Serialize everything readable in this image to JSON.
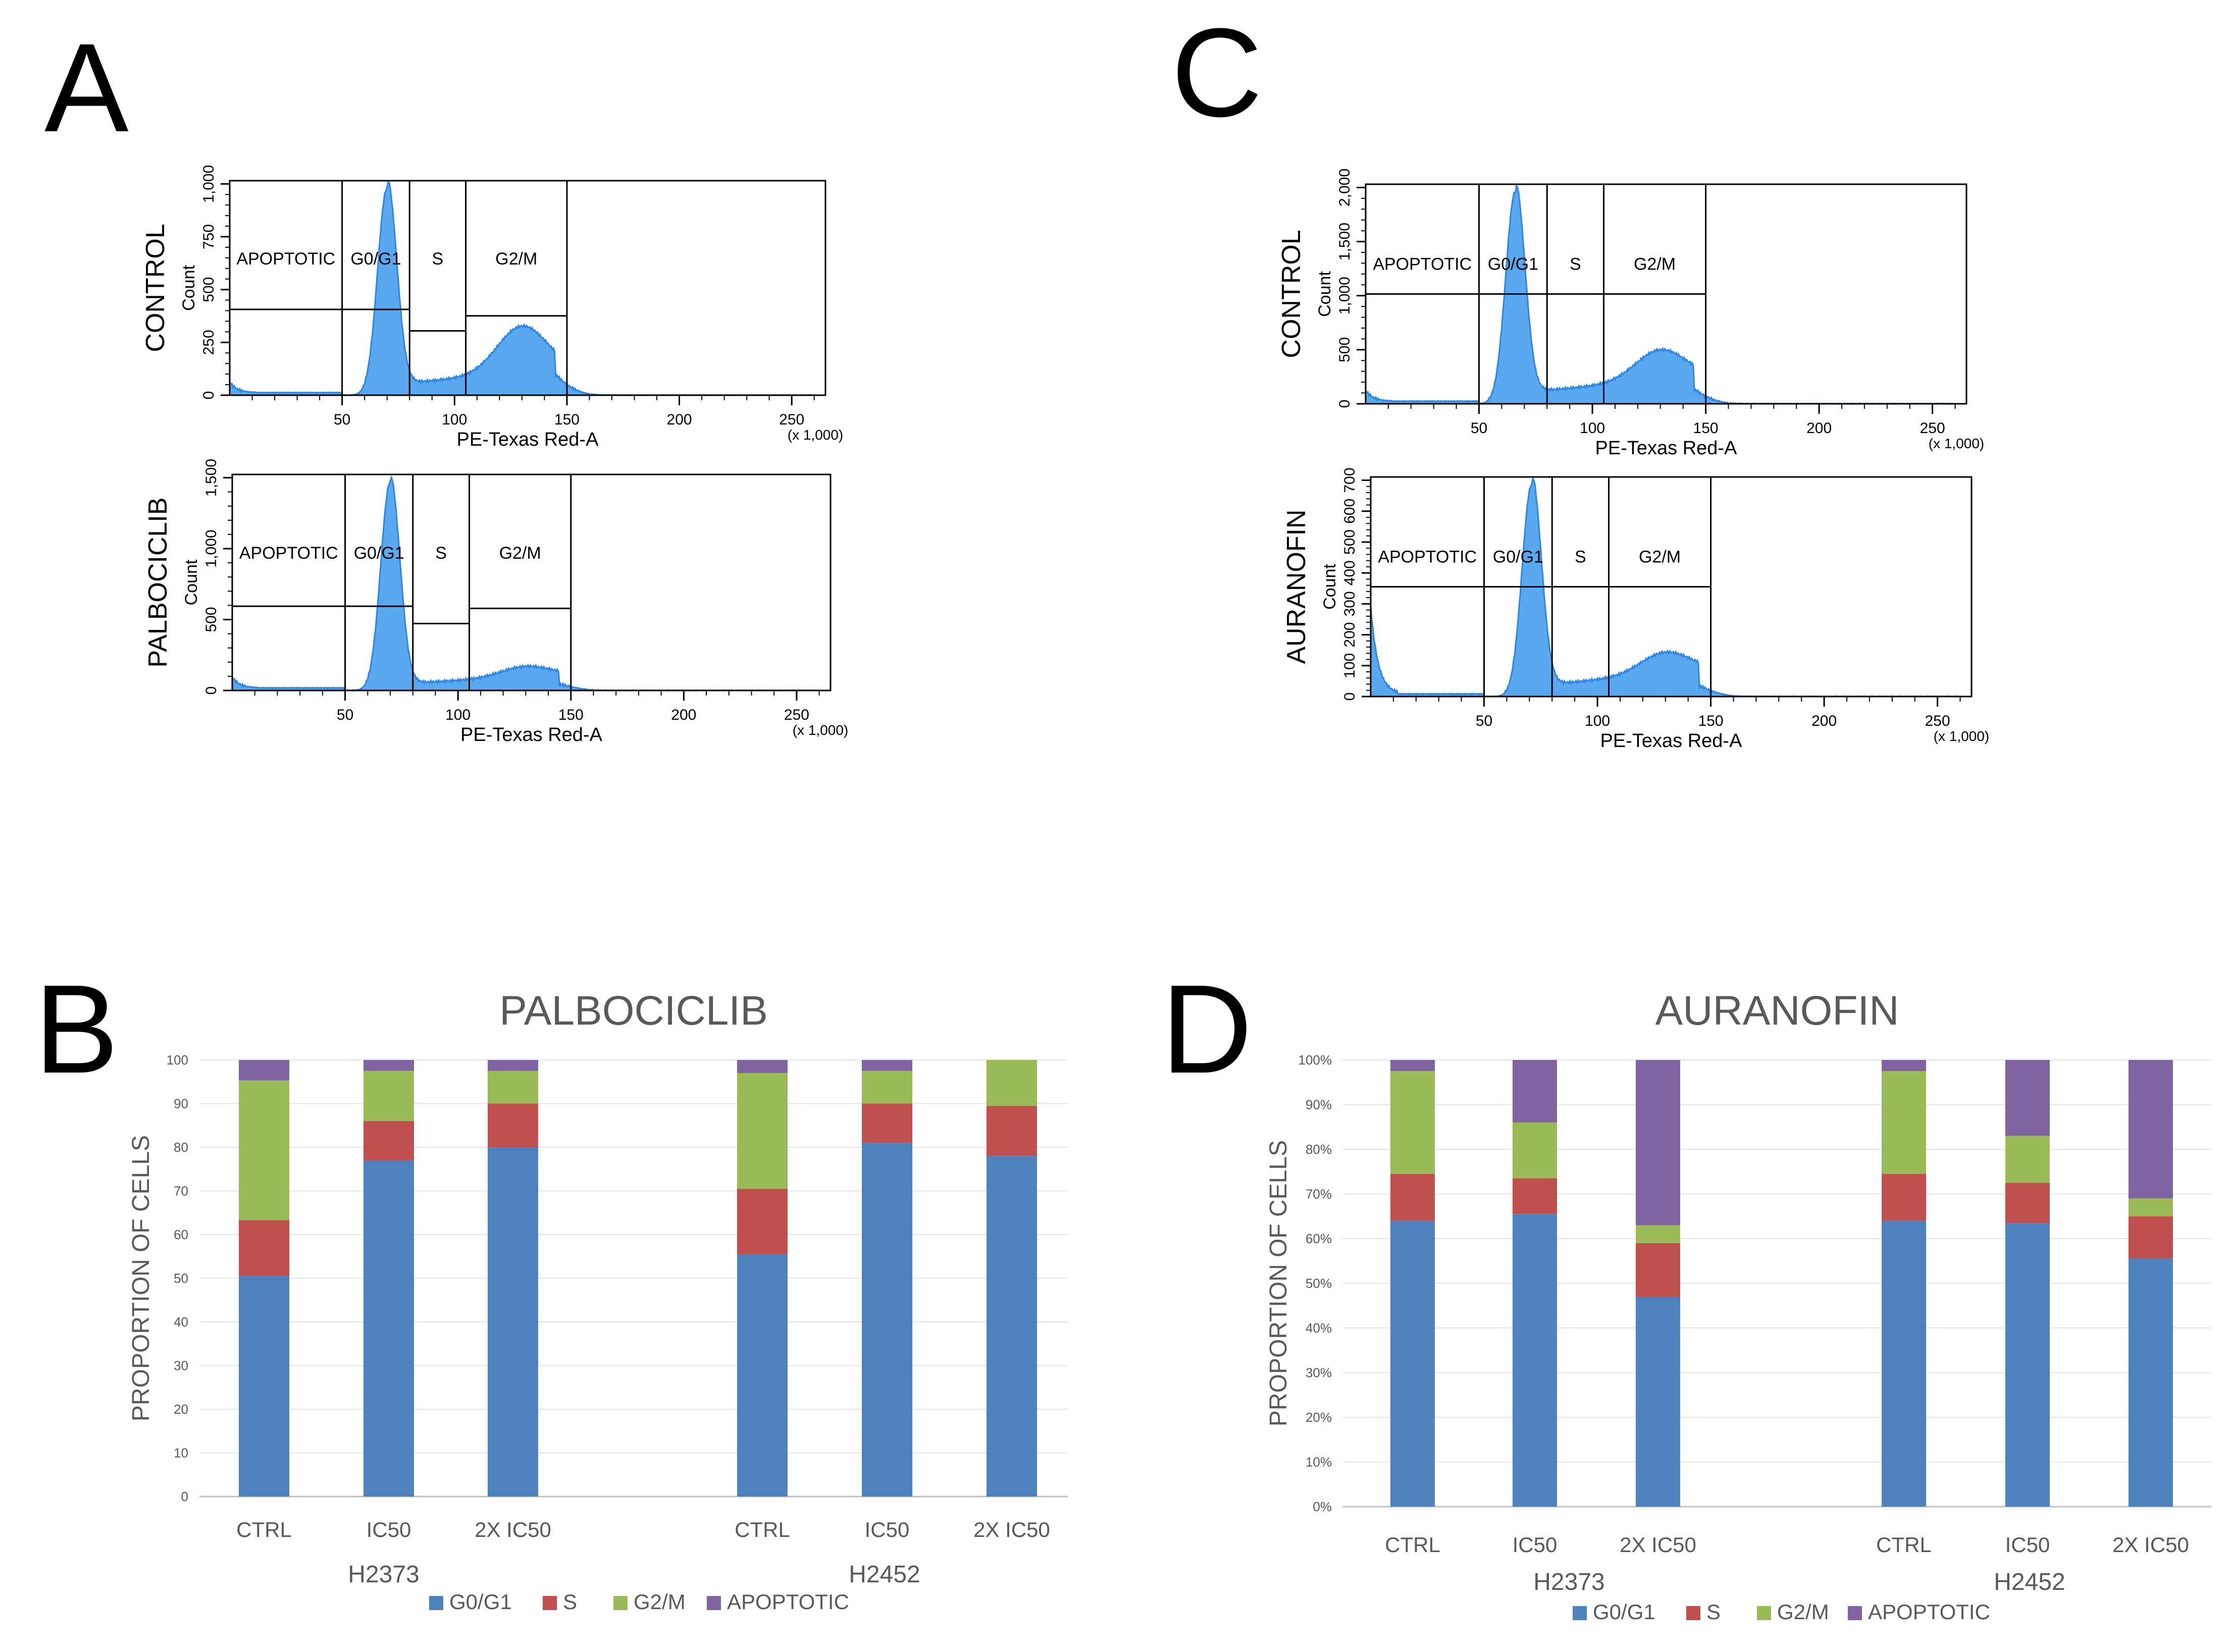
{
  "panels": {
    "A": "A",
    "B": "B",
    "C": "C",
    "D": "D"
  },
  "colors": {
    "g0g1": "#4F81BD",
    "s": "#C0504D",
    "g2m": "#9BBB59",
    "apoptotic": "#8064A2",
    "histogram_fill": "#5AA8F0",
    "histogram_stroke": "#2E86DE"
  },
  "histograms": [
    {
      "id": "A-control",
      "condition_label": "CONTROL",
      "ylabel": "Count",
      "y_ticks": [
        "0",
        "250",
        "500",
        "750",
        "1,000"
      ],
      "ylim": [
        0,
        1000
      ],
      "xlabel": "PE-Texas Red-A",
      "x_ticks": [
        "50",
        "100",
        "150",
        "200",
        "250"
      ],
      "x_multiplier": "(x 1,000)",
      "gates": [
        {
          "label": "APOPTOTIC",
          "x_start": 0,
          "x_end": 50
        },
        {
          "label": "G0/G1",
          "x_start": 50,
          "x_end": 80
        },
        {
          "label": "S",
          "x_start": 80,
          "x_end": 105
        },
        {
          "label": "G2/M",
          "x_start": 105,
          "x_end": 150
        }
      ]
    },
    {
      "id": "A-palbociclib",
      "condition_label": "PALBOCICLIB",
      "ylabel": "Count",
      "y_ticks": [
        "0",
        "500",
        "1,000",
        "1,500"
      ],
      "ylim": [
        0,
        1500
      ],
      "xlabel": "PE-Texas Red-A",
      "x_ticks": [
        "50",
        "100",
        "150",
        "200",
        "250"
      ],
      "x_multiplier": "(x 1,000)",
      "gates": [
        {
          "label": "APOPTOTIC",
          "x_start": 0,
          "x_end": 50
        },
        {
          "label": "G0/G1",
          "x_start": 50,
          "x_end": 80
        },
        {
          "label": "S",
          "x_start": 80,
          "x_end": 105
        },
        {
          "label": "G2/M",
          "x_start": 105,
          "x_end": 150
        }
      ]
    },
    {
      "id": "C-control",
      "condition_label": "CONTROL",
      "ylabel": "Count",
      "y_ticks": [
        "0",
        "500",
        "1,000",
        "1,500",
        "2,000"
      ],
      "ylim": [
        0,
        2000
      ],
      "xlabel": "PE-Texas Red-A",
      "x_ticks": [
        "50",
        "100",
        "150",
        "200",
        "250"
      ],
      "x_multiplier": "(x 1,000)",
      "gates": [
        {
          "label": "APOPTOTIC",
          "x_start": 0,
          "x_end": 50
        },
        {
          "label": "G0/G1",
          "x_start": 50,
          "x_end": 80
        },
        {
          "label": "S",
          "x_start": 80,
          "x_end": 105
        },
        {
          "label": "G2/M",
          "x_start": 105,
          "x_end": 150
        }
      ]
    },
    {
      "id": "C-auranofin",
      "condition_label": "AURANOFIN",
      "ylabel": "Count",
      "y_ticks": [
        "0",
        "100",
        "200",
        "300",
        "400",
        "500",
        "600",
        "700"
      ],
      "ylim": [
        0,
        700
      ],
      "xlabel": "PE-Texas Red-A",
      "x_ticks": [
        "50",
        "100",
        "150",
        "200",
        "250"
      ],
      "x_multiplier": "(x 1,000)",
      "gates": [
        {
          "label": "APOPTOTIC",
          "x_start": 0,
          "x_end": 50
        },
        {
          "label": "G0/G1",
          "x_start": 50,
          "x_end": 80
        },
        {
          "label": "S",
          "x_start": 80,
          "x_end": 105
        },
        {
          "label": "G2/M",
          "x_start": 105,
          "x_end": 150
        }
      ]
    }
  ],
  "chart_data": [
    {
      "type": "bar",
      "stacked": true,
      "panel": "B",
      "title": "PALBOCICLIB",
      "ylabel": "PROPORTION OF CELLS",
      "ylim": [
        0,
        100
      ],
      "y_ticks": [
        "0",
        "10",
        "20",
        "30",
        "40",
        "50",
        "60",
        "70",
        "80",
        "90",
        "100"
      ],
      "grid": true,
      "legend_position": "bottom",
      "groups": [
        {
          "name": "H2373",
          "categories": [
            "CTRL",
            "IC50",
            "2X IC50"
          ]
        },
        {
          "name": "H2452",
          "categories": [
            "CTRL",
            "IC50",
            "2X IC50"
          ]
        }
      ],
      "series": [
        {
          "name": "G0/G1",
          "values": [
            50.5,
            77,
            80,
            55.5,
            81,
            78
          ]
        },
        {
          "name": "S",
          "values": [
            12.8,
            9,
            10,
            15,
            9,
            11.5
          ]
        },
        {
          "name": "G2/M",
          "values": [
            32,
            11.5,
            7.5,
            26.5,
            7.5,
            10.5
          ]
        },
        {
          "name": "APOPTOTIC",
          "values": [
            4.7,
            2.5,
            2.5,
            3,
            2.5,
            0
          ]
        }
      ]
    },
    {
      "type": "bar",
      "stacked": true,
      "panel": "D",
      "title": "AURANOFIN",
      "ylabel": "PROPORTION OF CELLS",
      "ylim": [
        0,
        100
      ],
      "y_ticks": [
        "0%",
        "10%",
        "20%",
        "30%",
        "40%",
        "50%",
        "60%",
        "70%",
        "80%",
        "90%",
        "100%"
      ],
      "grid": true,
      "legend_position": "bottom",
      "groups": [
        {
          "name": "H2373",
          "categories": [
            "CTRL",
            "IC50",
            "2X IC50"
          ]
        },
        {
          "name": "H2452",
          "categories": [
            "CTRL",
            "IC50",
            "2X IC50"
          ]
        }
      ],
      "series": [
        {
          "name": "G0/G1",
          "values": [
            64,
            65.5,
            47,
            64,
            63.5,
            55.5
          ]
        },
        {
          "name": "S",
          "values": [
            10.5,
            8,
            12,
            10.5,
            9,
            9.5
          ]
        },
        {
          "name": "G2/M",
          "values": [
            23,
            12.5,
            4,
            23,
            10.5,
            4
          ]
        },
        {
          "name": "APOPTOTIC",
          "values": [
            2.5,
            14,
            37,
            2.5,
            17,
            31
          ]
        }
      ]
    }
  ]
}
